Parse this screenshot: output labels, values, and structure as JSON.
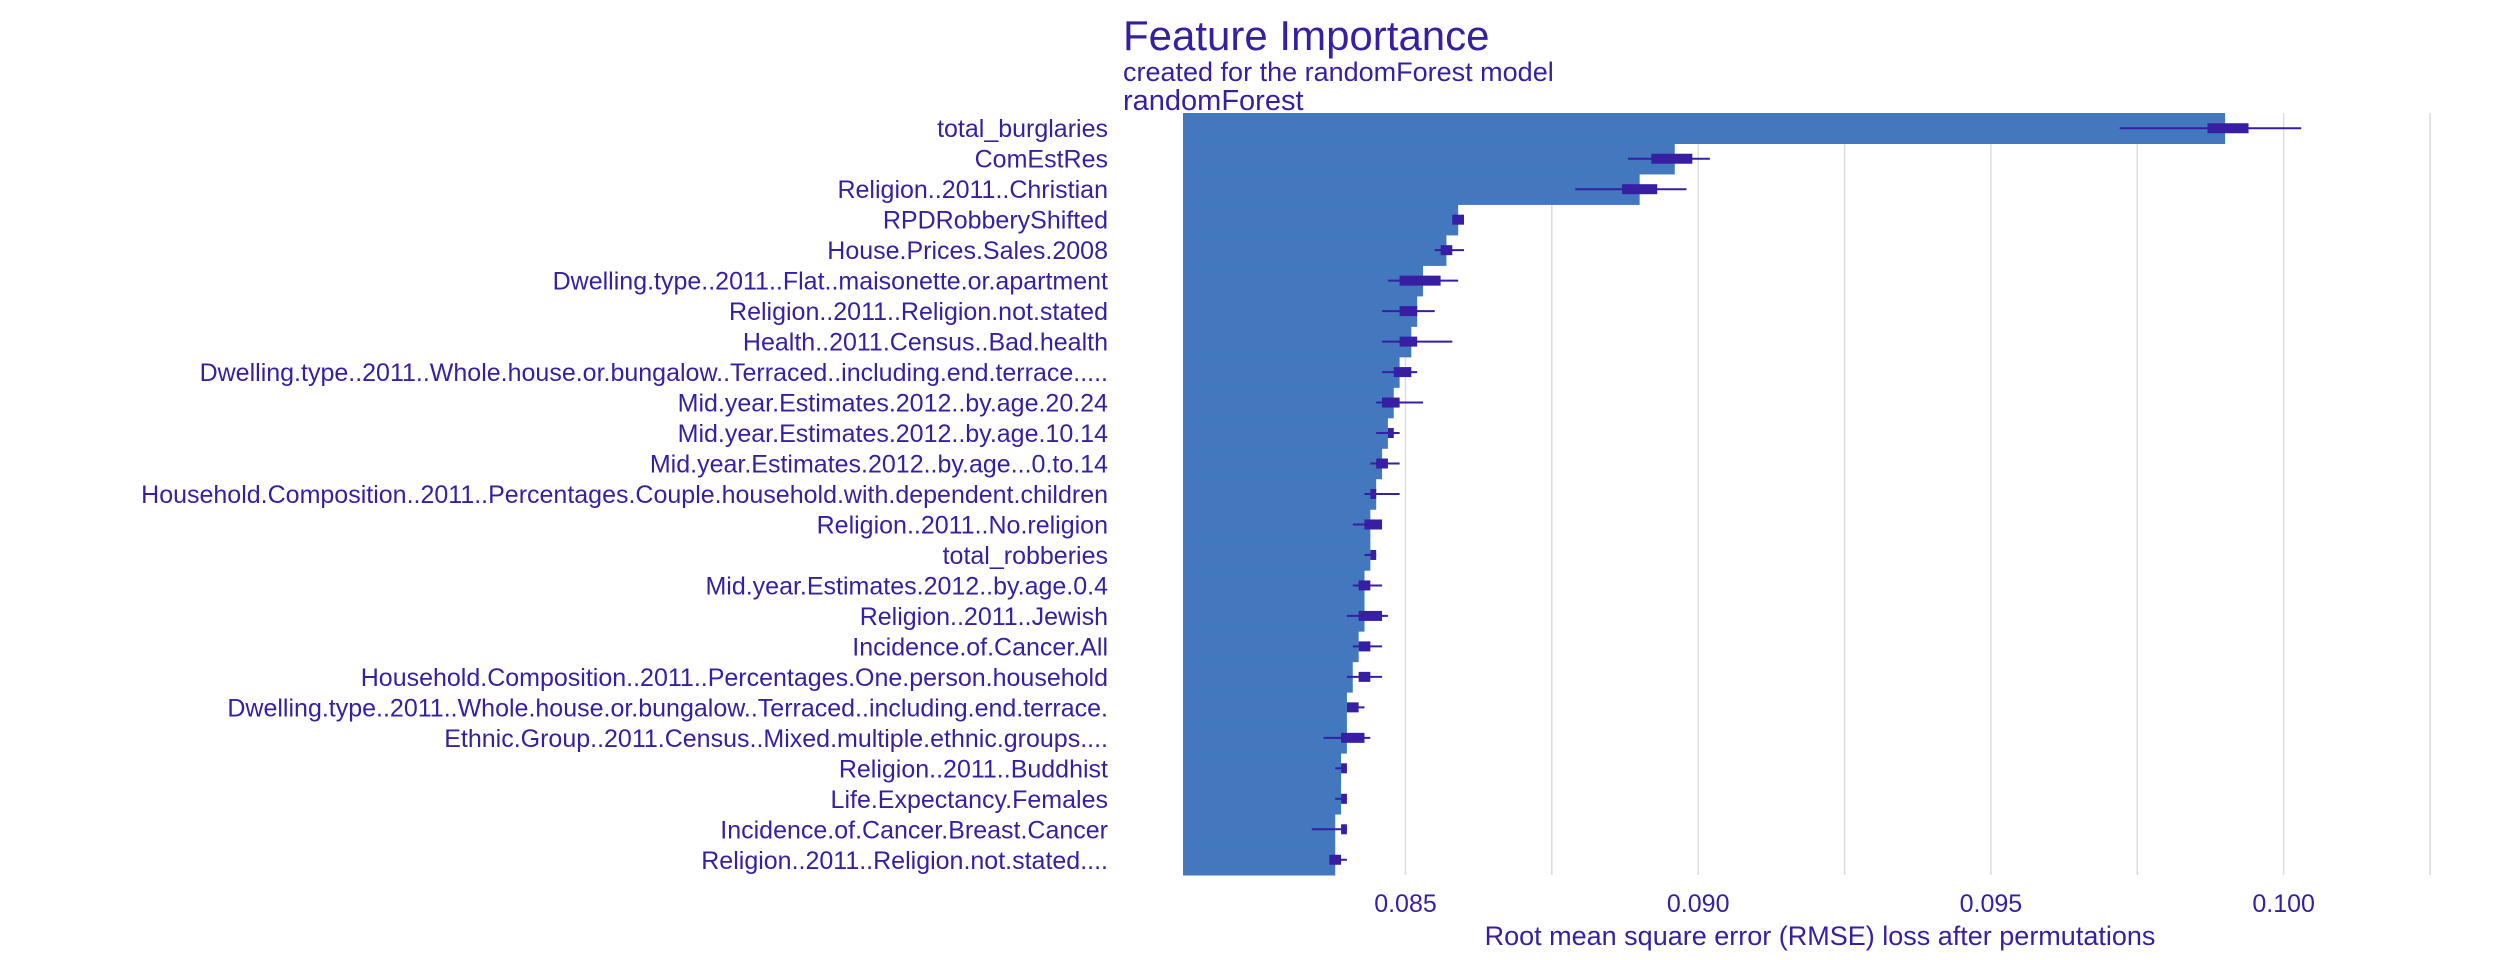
{
  "colors": {
    "text": "#371ea3",
    "bar": "#4378bf",
    "box": "#371ea3",
    "grid": "#dcdcdc"
  },
  "chart_data": {
    "type": "bar",
    "orientation": "horizontal",
    "title": "Feature Importance",
    "subtitle": "created for the randomForest model",
    "panel_label": "randomForest",
    "xlabel": "Root mean square error (RMSE) loss after permutations",
    "xlim": [
      0.0812,
      0.1025
    ],
    "baseline": 0.0812,
    "xticks": [
      0.085,
      0.09,
      0.095,
      0.1
    ],
    "xtick_labels": [
      "0.085",
      "0.090",
      "0.095",
      "0.100"
    ],
    "grid": true,
    "categories": [
      "total_burglaries",
      "ComEstRes",
      "Religion..2011..Christian",
      "RPDRobberyShifted",
      "House.Prices.Sales.2008",
      "Dwelling.type..2011..Flat..maisonette.or.apartment",
      "Religion..2011..Religion.not.stated",
      "Health..2011.Census..Bad.health",
      "Dwelling.type..2011..Whole.house.or.bungalow..Terraced..including.end.terrace.....",
      "Mid.year.Estimates.2012..by.age.20.24",
      "Mid.year.Estimates.2012..by.age.10.14",
      "Mid.year.Estimates.2012..by.age...0.to.14",
      "Household.Composition..2011..Percentages.Couple.household.with.dependent.children",
      "Religion..2011..No.religion",
      "total_robberies",
      "Mid.year.Estimates.2012..by.age.0.4",
      "Religion..2011..Jewish",
      "Incidence.of.Cancer.All",
      "Household.Composition..2011..Percentages.One.person.household",
      "Dwelling.type..2011..Whole.house.or.bungalow..Terraced..including.end.terrace.",
      "Ethnic.Group..2011.Census..Mixed.multiple.ethnic.groups....",
      "Religion..2011..Buddhist",
      "Life.Expectancy.Females",
      "Incidence.of.Cancer.Breast.Cancer",
      "Religion..2011..Religion.not.stated...."
    ],
    "values": [
      0.099,
      0.0896,
      0.089,
      0.0859,
      0.0857,
      0.0853,
      0.0852,
      0.0851,
      0.0849,
      0.0848,
      0.0847,
      0.0846,
      0.0845,
      0.0844,
      0.0844,
      0.0843,
      0.0843,
      0.0842,
      0.0841,
      0.084,
      0.084,
      0.0839,
      0.0839,
      0.0838,
      0.0838
    ],
    "boxplots": [
      {
        "min": 0.0972,
        "q1": 0.0987,
        "q3": 0.0994,
        "max": 0.1003
      },
      {
        "min": 0.0888,
        "q1": 0.0892,
        "q3": 0.0899,
        "max": 0.0902
      },
      {
        "min": 0.0879,
        "q1": 0.0887,
        "q3": 0.0893,
        "max": 0.0898
      },
      {
        "min": 0.0858,
        "q1": 0.0858,
        "q3": 0.086,
        "max": 0.086
      },
      {
        "min": 0.0855,
        "q1": 0.0856,
        "q3": 0.0858,
        "max": 0.086
      },
      {
        "min": 0.0847,
        "q1": 0.0849,
        "q3": 0.0856,
        "max": 0.0859
      },
      {
        "min": 0.0846,
        "q1": 0.0849,
        "q3": 0.0852,
        "max": 0.0855
      },
      {
        "min": 0.0846,
        "q1": 0.0849,
        "q3": 0.0852,
        "max": 0.0858
      },
      {
        "min": 0.0846,
        "q1": 0.0848,
        "q3": 0.0851,
        "max": 0.0852
      },
      {
        "min": 0.0845,
        "q1": 0.0846,
        "q3": 0.0849,
        "max": 0.0853
      },
      {
        "min": 0.0845,
        "q1": 0.0847,
        "q3": 0.0848,
        "max": 0.0849
      },
      {
        "min": 0.0844,
        "q1": 0.0845,
        "q3": 0.0847,
        "max": 0.0849
      },
      {
        "min": 0.0843,
        "q1": 0.0844,
        "q3": 0.0845,
        "max": 0.0849
      },
      {
        "min": 0.0841,
        "q1": 0.0843,
        "q3": 0.0846,
        "max": 0.0846
      },
      {
        "min": 0.0843,
        "q1": 0.0844,
        "q3": 0.0845,
        "max": 0.0845
      },
      {
        "min": 0.0841,
        "q1": 0.0842,
        "q3": 0.0844,
        "max": 0.0846
      },
      {
        "min": 0.084,
        "q1": 0.0842,
        "q3": 0.0846,
        "max": 0.0847
      },
      {
        "min": 0.0841,
        "q1": 0.0842,
        "q3": 0.0844,
        "max": 0.0846
      },
      {
        "min": 0.084,
        "q1": 0.0842,
        "q3": 0.0844,
        "max": 0.0846
      },
      {
        "min": 0.084,
        "q1": 0.084,
        "q3": 0.0842,
        "max": 0.0843
      },
      {
        "min": 0.0836,
        "q1": 0.0839,
        "q3": 0.0843,
        "max": 0.0844
      },
      {
        "min": 0.0838,
        "q1": 0.0839,
        "q3": 0.084,
        "max": 0.084
      },
      {
        "min": 0.0838,
        "q1": 0.0839,
        "q3": 0.084,
        "max": 0.084
      },
      {
        "min": 0.0834,
        "q1": 0.0839,
        "q3": 0.084,
        "max": 0.084
      },
      {
        "min": 0.0837,
        "q1": 0.0837,
        "q3": 0.0839,
        "max": 0.084
      }
    ]
  }
}
